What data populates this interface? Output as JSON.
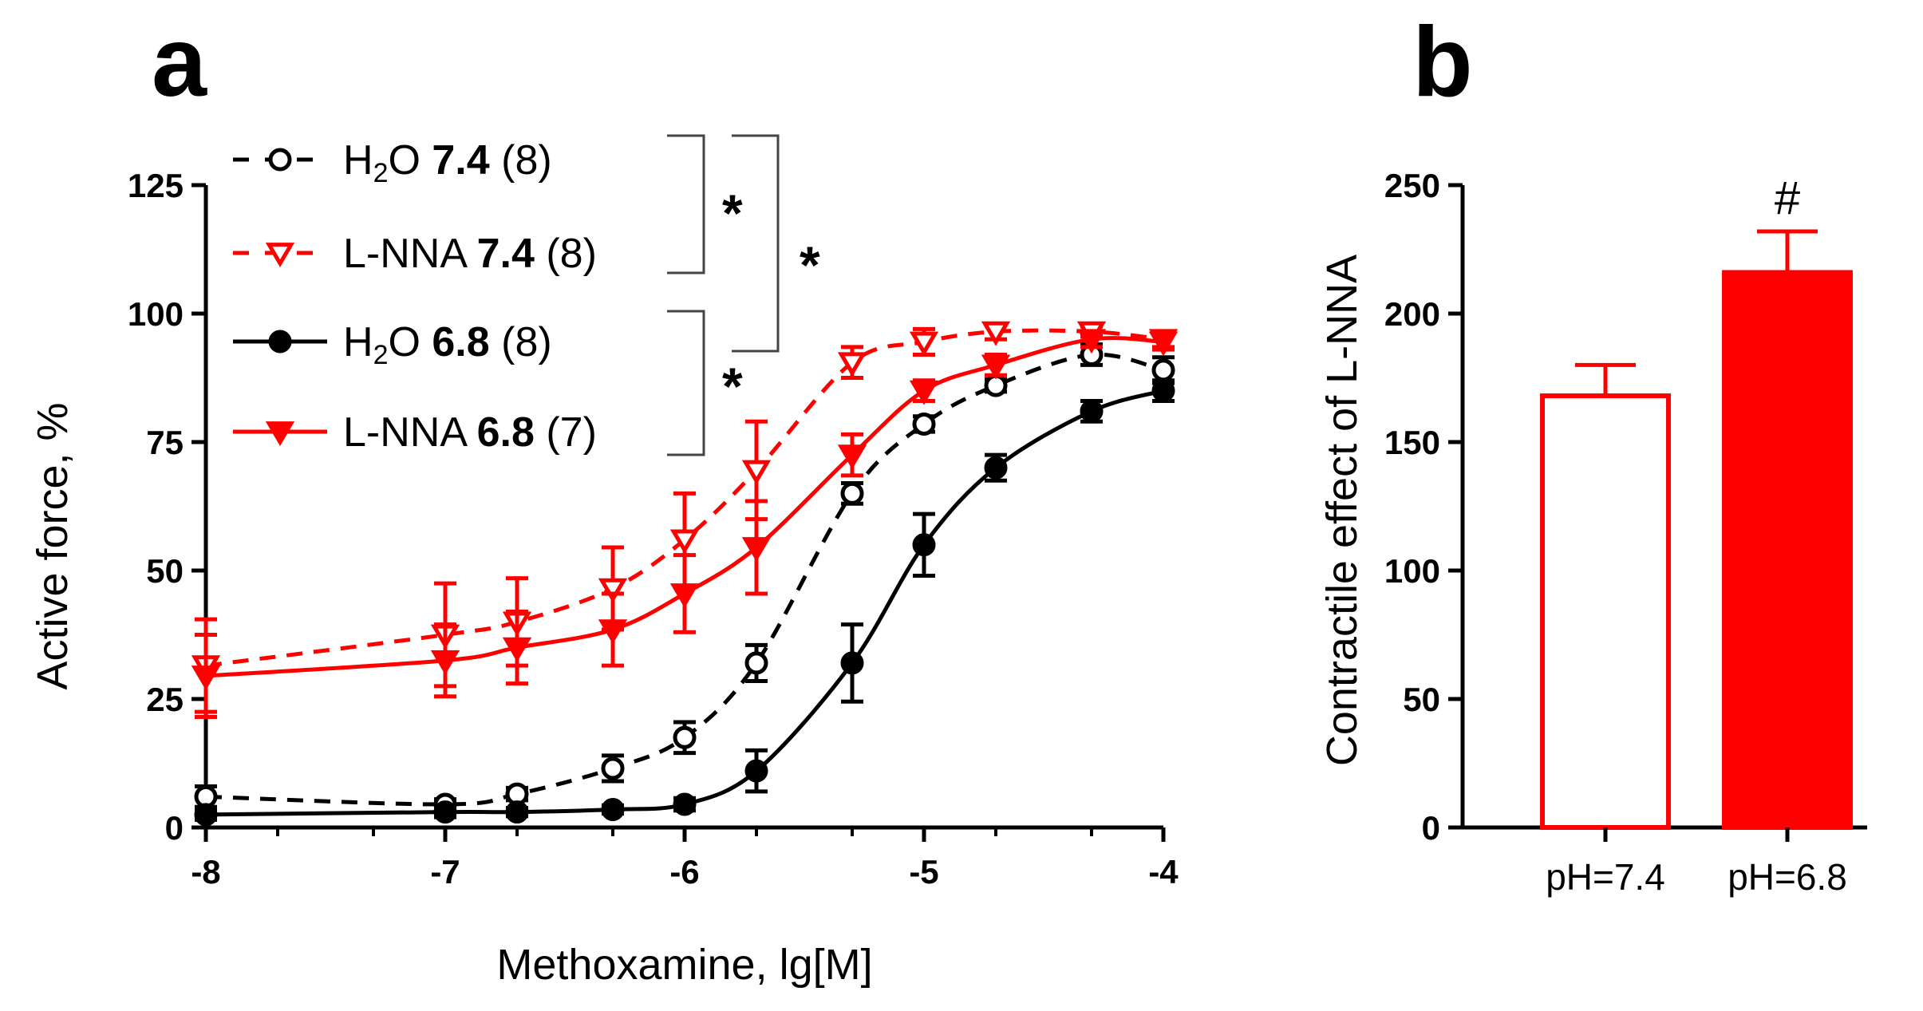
{
  "panels": {
    "a": "a",
    "b": "b"
  },
  "colors": {
    "red": "#ff0000",
    "black": "#000000"
  },
  "chart_data": [
    {
      "type": "line",
      "panel": "a",
      "xlabel": "Methoxamine, lg[M]",
      "ylabel": "Active force, %",
      "xlim": [
        -8,
        -4
      ],
      "ylim": [
        0,
        125
      ],
      "xticks": [
        -8,
        -7,
        -6,
        -5,
        -4
      ],
      "xtick_labels": [
        "-8",
        "-7",
        "-6",
        "-5",
        "-4"
      ],
      "yticks": [
        0,
        25,
        50,
        75,
        100,
        125
      ],
      "ytick_labels": [
        "0",
        "25",
        "50",
        "75",
        "100",
        "125"
      ],
      "x": [
        -8,
        -7,
        -6.7,
        -6.3,
        -6,
        -5.7,
        -5.3,
        -5,
        -4.7,
        -4.3,
        -4
      ],
      "series": [
        {
          "name": "H2O 7.4 (8)",
          "label_parts": [
            "H",
            "2",
            "O ",
            "7.4",
            " (8)"
          ],
          "color": "#000000",
          "marker": "circle-open",
          "dash": true,
          "values": [
            6,
            4.5,
            6.5,
            11.5,
            17.5,
            32,
            65,
            78.5,
            86,
            92,
            89
          ],
          "errors": [
            2,
            1,
            1.2,
            2.5,
            3,
            3.5,
            2,
            1.5,
            1.2,
            2,
            2.5
          ]
        },
        {
          "name": "L-NNA 7.4 (8)",
          "label_parts": [
            "L-NNA ",
            "7.4",
            " (8)"
          ],
          "color": "#ff0000",
          "marker": "triangle-down-open",
          "dash": true,
          "values": [
            31.5,
            37.5,
            40,
            46.5,
            56,
            69.5,
            90.5,
            94.5,
            96.5,
            96.5,
            95
          ],
          "errors": [
            9,
            10,
            8.5,
            8,
            9,
            9.5,
            3,
            2.5,
            1.5,
            1,
            1.5
          ]
        },
        {
          "name": "H2O 6.8 (8)",
          "label_parts": [
            "H",
            "2",
            "O ",
            "6.8",
            " (8)"
          ],
          "color": "#000000",
          "marker": "circle-filled",
          "dash": false,
          "values": [
            2.5,
            3,
            3,
            3.5,
            4.5,
            11,
            32,
            55,
            70,
            81,
            85
          ],
          "errors": [
            1,
            1,
            0.8,
            0.8,
            1.2,
            4,
            7.5,
            6,
            2.5,
            2,
            2
          ]
        },
        {
          "name": "L-NNA 6.8 (7)",
          "label_parts": [
            "L-NNA ",
            "6.8",
            " (7)"
          ],
          "color": "#ff0000",
          "marker": "triangle-down-filled",
          "dash": false,
          "values": [
            29.5,
            32.5,
            35,
            38.5,
            45.5,
            54.5,
            72.5,
            85,
            90,
            95,
            94.5
          ],
          "errors": [
            8,
            7,
            7,
            7,
            7.5,
            9,
            4,
            2,
            2,
            1.5,
            1.5
          ]
        }
      ],
      "significance": [
        "*",
        "*",
        "*"
      ]
    },
    {
      "type": "bar",
      "panel": "b",
      "ylabel": "Contractile effect of L-NNA",
      "categories": [
        "pH=7.4",
        "pH=6.8"
      ],
      "values": [
        168,
        216
      ],
      "errors": [
        12,
        16
      ],
      "fill": [
        "open",
        "filled"
      ],
      "ylim": [
        0,
        250
      ],
      "yticks": [
        0,
        50,
        100,
        150,
        200,
        250
      ],
      "ytick_labels": [
        "0",
        "50",
        "100",
        "150",
        "200",
        "250"
      ],
      "annotations": [
        "",
        "#"
      ]
    }
  ]
}
